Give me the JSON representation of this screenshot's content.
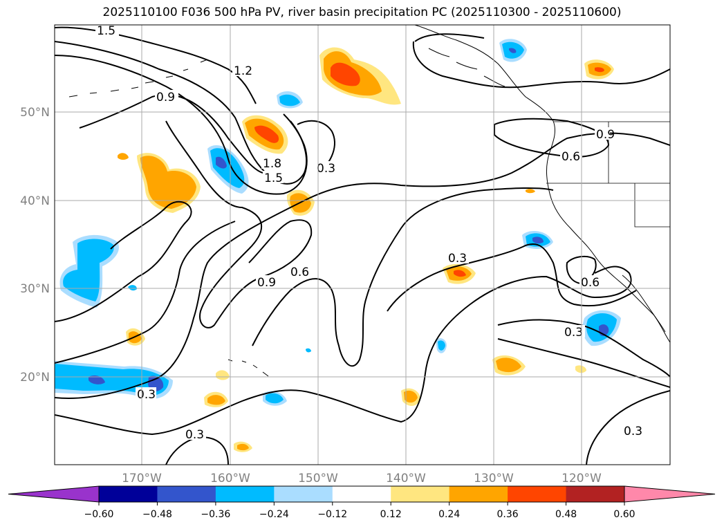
{
  "title": "2025110100 F036 500 hPa PV, river basin precipitation PC (2025110300 - 2025110600)",
  "lat_labels": [
    "50°N",
    "40°N",
    "30°N",
    "20°N"
  ],
  "lon_labels": [
    "170°W",
    "160°W",
    "150°W",
    "140°W",
    "130°W",
    "120°W"
  ],
  "colorbar": {
    "colors": [
      "#9933cc",
      "#000099",
      "#3355cc",
      "#00bbff",
      "#aaddff",
      "#ffffff",
      "#ffe680",
      "#ffa500",
      "#ff4500",
      "#b22222",
      "#ff88aa"
    ],
    "tick_labels": [
      "−0.60",
      "−0.48",
      "−0.36",
      "−0.24",
      "−0.12",
      "0.12",
      "0.24",
      "0.36",
      "0.48",
      "0.60"
    ]
  },
  "contour_labels": [
    "1.5",
    "1.2",
    "0.9",
    "1.8",
    "1.5",
    "0.3",
    "0.9",
    "0.6",
    "0.3",
    "0.6",
    "0.9",
    "0.6",
    "0.3",
    "0.3",
    "0.3",
    "0.3"
  ]
}
